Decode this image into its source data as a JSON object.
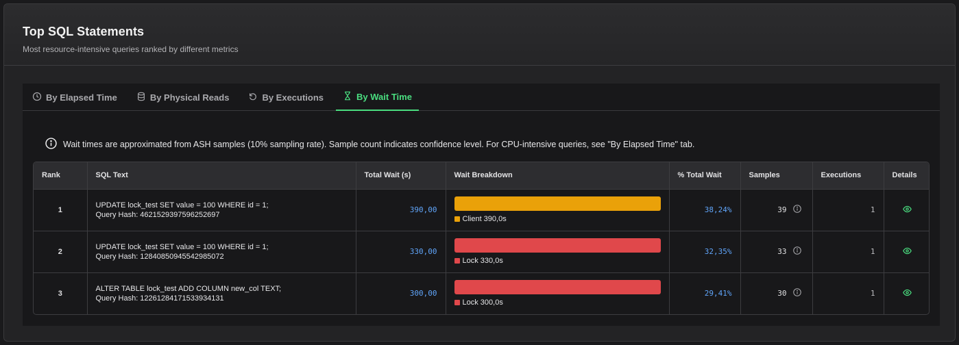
{
  "header": {
    "title": "Top SQL Statements",
    "subtitle": "Most resource-intensive queries ranked by different metrics"
  },
  "tabs": [
    {
      "label": "By Elapsed Time",
      "icon": "clock-icon",
      "active": false
    },
    {
      "label": "By Physical Reads",
      "icon": "database-icon",
      "active": false
    },
    {
      "label": "By Executions",
      "icon": "refresh-icon",
      "active": false
    },
    {
      "label": "By Wait Time",
      "icon": "hourglass-icon",
      "active": true
    }
  ],
  "info": {
    "text": "Wait times are approximated from ASH samples (10% sampling rate). Sample count indicates confidence level. For CPU-intensive queries, see \"By Elapsed Time\" tab."
  },
  "table": {
    "columns": [
      "Rank",
      "SQL Text",
      "Total Wait (s)",
      "Wait Breakdown",
      "% Total Wait",
      "Samples",
      "Executions",
      "Details"
    ],
    "rows": [
      {
        "rank": "1",
        "sql": "UPDATE lock_test SET value = 100 WHERE id = 1;",
        "hash": "Query Hash: 4621529397596252697",
        "total_wait": "390,00",
        "breakdown_label": "Client 390,0s",
        "breakdown_color": "#eaa109",
        "pct": "38,24%",
        "samples": "39",
        "executions": "1"
      },
      {
        "rank": "2",
        "sql": "UPDATE lock_test SET value = 100 WHERE id = 1;",
        "hash": "Query Hash: 12840850945542985072",
        "total_wait": "330,00",
        "breakdown_label": "Lock 330,0s",
        "breakdown_color": "#e0484b",
        "pct": "32,35%",
        "samples": "33",
        "executions": "1"
      },
      {
        "rank": "3",
        "sql": "ALTER TABLE lock_test ADD COLUMN new_col TEXT;",
        "hash": "Query Hash: 12261284171533934131",
        "total_wait": "300,00",
        "breakdown_label": "Lock 300,0s",
        "breakdown_color": "#e0484b",
        "pct": "29,41%",
        "samples": "30",
        "executions": "1"
      }
    ]
  },
  "colors": {
    "accent_green": "#4ade80",
    "number_blue": "#60a5fa",
    "client_orange": "#eaa109",
    "lock_red": "#e0484b"
  }
}
